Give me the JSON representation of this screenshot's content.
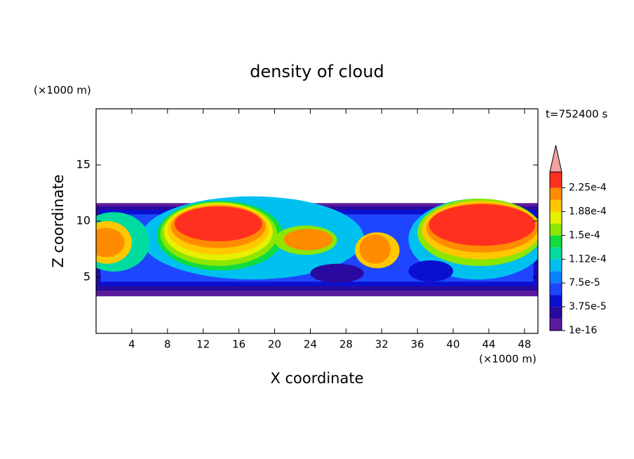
{
  "chart_data": {
    "type": "contour",
    "title": "density of cloud",
    "x_label": "X coordinate",
    "y_label": "Z coordinate",
    "x_unit": "(×1000 m)",
    "y_unit": "(×1000 m)",
    "annotation": "t=752400 s",
    "xlim": [
      0,
      49.5
    ],
    "ylim": [
      0,
      20
    ],
    "xticks": [
      4,
      8,
      12,
      16,
      20,
      24,
      28,
      32,
      36,
      40,
      44,
      48
    ],
    "yticks": [
      5,
      10,
      15
    ],
    "clim": [
      1e-16,
      0.00025
    ],
    "levels": [
      1e-16,
      1.875e-05,
      3.75e-05,
      5.625e-05,
      7.5e-05,
      9.375e-05,
      0.0001125,
      0.00013125,
      0.00015,
      0.00016875,
      0.0001875,
      0.00020625,
      0.000225
    ],
    "colors": [
      "#5a1a9c",
      "#2a0a9e",
      "#0a10d0",
      "#1e46ff",
      "#0a82ff",
      "#00c0f0",
      "#00dca0",
      "#10dc40",
      "#8ce600",
      "#e6f000",
      "#ffc800",
      "#ff8c00",
      "#ff3020"
    ],
    "extend_color": "#f4a0a0",
    "cticks": [
      {
        "value": 1e-16,
        "label": "1e-16"
      },
      {
        "value": 3.75e-05,
        "label": "3.75e-5"
      },
      {
        "value": 7.5e-05,
        "label": "7.5e-5"
      },
      {
        "value": 0.0001125,
        "label": "1.12e-4"
      },
      {
        "value": 0.00015,
        "label": "1.5e-4"
      },
      {
        "value": 0.0001875,
        "label": "1.88e-4"
      },
      {
        "value": 0.000225,
        "label": "2.25e-4"
      }
    ],
    "regions": [
      {
        "shape": "rect",
        "value": 1e-05,
        "x": [
          0,
          49.5
        ],
        "z": [
          3.3,
          11.6
        ]
      },
      {
        "shape": "rect",
        "value": 2.8e-05,
        "x": [
          0,
          49.5
        ],
        "z": [
          3.8,
          11.3
        ]
      },
      {
        "shape": "rect",
        "value": 4.7e-05,
        "x": [
          0.3,
          49.3
        ],
        "z": [
          4.2,
          11.0
        ]
      },
      {
        "shape": "rect",
        "value": 6.6e-05,
        "x": [
          0.5,
          49
        ],
        "z": [
          4.6,
          10.6
        ]
      },
      {
        "shape": "ellipse",
        "value": 0.000103,
        "x": [
          5,
          30
        ],
        "z": [
          4.8,
          12.2
        ]
      },
      {
        "shape": "ellipse",
        "value": 0.000103,
        "x": [
          35,
          50.5
        ],
        "z": [
          4.8,
          12
        ]
      },
      {
        "shape": "ellipse",
        "value": 2.8e-05,
        "x": [
          24,
          30
        ],
        "z": [
          4.5,
          6.2
        ]
      },
      {
        "shape": "ellipse",
        "value": 4.7e-05,
        "x": [
          35,
          40
        ],
        "z": [
          4.6,
          6.5
        ]
      },
      {
        "shape": "ellipse",
        "value": 0.00012,
        "x": [
          -2,
          6
        ],
        "z": [
          5.5,
          10.8
        ]
      },
      {
        "shape": "ellipse",
        "value": 0.000197,
        "x": [
          -1.5,
          4
        ],
        "z": [
          6.2,
          10
        ]
      },
      {
        "shape": "ellipse",
        "value": 0.000215,
        "x": [
          -1,
          3.2
        ],
        "z": [
          6.8,
          9.4
        ]
      },
      {
        "shape": "ellipse",
        "value": 0.00014,
        "x": [
          6.8,
          21
        ],
        "z": [
          5.6,
          11.8
        ]
      },
      {
        "shape": "ellipse",
        "value": 0.00016,
        "x": [
          7.2,
          20.3
        ],
        "z": [
          6,
          11.7
        ]
      },
      {
        "shape": "ellipse",
        "value": 0.000178,
        "x": [
          7.6,
          19.8
        ],
        "z": [
          6.5,
          11.6
        ]
      },
      {
        "shape": "ellipse",
        "value": 0.000197,
        "x": [
          8,
          19.4
        ],
        "z": [
          7,
          11.5
        ]
      },
      {
        "shape": "ellipse",
        "value": 0.000215,
        "x": [
          8.4,
          19
        ],
        "z": [
          7.6,
          11.4
        ]
      },
      {
        "shape": "ellipse",
        "value": 0.000235,
        "x": [
          8.8,
          18.6
        ],
        "z": [
          8.2,
          11.3
        ]
      },
      {
        "shape": "ellipse",
        "value": 0.00016,
        "x": [
          20,
          27
        ],
        "z": [
          7,
          9.6
        ]
      },
      {
        "shape": "ellipse",
        "value": 0.000215,
        "x": [
          21,
          26.5
        ],
        "z": [
          7.4,
          9.3
        ]
      },
      {
        "shape": "ellipse",
        "value": 0.000197,
        "x": [
          29,
          34
        ],
        "z": [
          5.8,
          9
        ]
      },
      {
        "shape": "ellipse",
        "value": 0.000215,
        "x": [
          29.5,
          33
        ],
        "z": [
          6.2,
          8.8
        ]
      },
      {
        "shape": "ellipse",
        "value": 0.00016,
        "x": [
          36,
          50
        ],
        "z": [
          6,
          12
        ]
      },
      {
        "shape": "ellipse",
        "value": 0.000197,
        "x": [
          36.5,
          49.8
        ],
        "z": [
          6.6,
          11.8
        ]
      },
      {
        "shape": "ellipse",
        "value": 0.000215,
        "x": [
          37,
          49.5
        ],
        "z": [
          7.2,
          11.6
        ]
      },
      {
        "shape": "ellipse",
        "value": 0.000235,
        "x": [
          37.3,
          49.2
        ],
        "z": [
          7.8,
          11.5
        ]
      }
    ]
  }
}
